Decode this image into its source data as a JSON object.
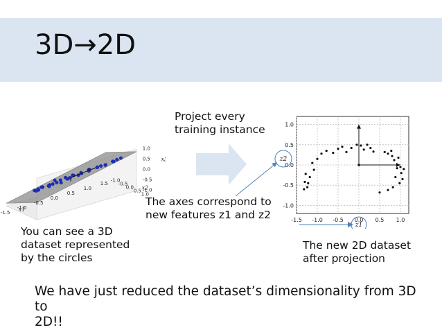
{
  "slide": {
    "title": "3D→2D",
    "project_text_line1": "Project every",
    "project_text_line2": "training instance",
    "axes_text_line1": "The axes correspond to",
    "axes_text_line2": "new features z1 and z2",
    "left_caption_line1": "You can see a 3D",
    "left_caption_line2": "dataset represented",
    "left_caption_line3": "by the circles",
    "right_caption_line1": "The new 2D dataset",
    "right_caption_line2": "after projection",
    "bottom_line1": "We have just reduced the dataset’s dimensionality from 3D to",
    "bottom_line2": "2D!!"
  },
  "colors": {
    "banner": "#dbe5f1",
    "arrow": "#dbe5f1",
    "callout": "#4f81bd",
    "points3d": "#1f2fbf"
  },
  "chart_data": [
    {
      "type": "scatter",
      "title": "",
      "xlabel": "z1",
      "ylabel": "z2",
      "xlim": [
        -1.5,
        1.2
      ],
      "ylim": [
        -1.2,
        1.2
      ],
      "xticks": [
        "-1.5",
        "-1.0",
        "-0.5",
        "0.0",
        "0.5",
        "1.0"
      ],
      "yticks": [
        "1.0",
        "0.5",
        "0.0",
        "-0.5",
        "-1.0"
      ],
      "grid": true,
      "points": [
        [
          -1.28,
          -0.22
        ],
        [
          -1.3,
          -0.42
        ],
        [
          -1.24,
          -0.55
        ],
        [
          -1.32,
          -0.6
        ],
        [
          -1.22,
          -0.45
        ],
        [
          -1.18,
          -0.3
        ],
        [
          -1.08,
          -0.12
        ],
        [
          -1.12,
          0.05
        ],
        [
          -1.0,
          0.15
        ],
        [
          -0.9,
          0.28
        ],
        [
          -0.78,
          0.35
        ],
        [
          -0.62,
          0.3
        ],
        [
          -0.5,
          0.4
        ],
        [
          -0.4,
          0.45
        ],
        [
          -0.3,
          0.32
        ],
        [
          -0.18,
          0.42
        ],
        [
          -0.05,
          0.5
        ],
        [
          0.05,
          0.48
        ],
        [
          0.12,
          0.38
        ],
        [
          0.2,
          0.5
        ],
        [
          0.28,
          0.42
        ],
        [
          0.35,
          0.33
        ],
        [
          0.62,
          0.32
        ],
        [
          0.7,
          0.28
        ],
        [
          0.78,
          0.35
        ],
        [
          0.8,
          0.22
        ],
        [
          0.85,
          0.12
        ],
        [
          0.95,
          0.18
        ],
        [
          1.0,
          -0.05
        ],
        [
          1.02,
          -0.2
        ],
        [
          1.05,
          -0.35
        ],
        [
          0.98,
          -0.45
        ],
        [
          1.08,
          -0.1
        ],
        [
          0.82,
          -0.55
        ],
        [
          0.7,
          -0.62
        ],
        [
          0.5,
          -0.68
        ],
        [
          0.88,
          -0.3
        ],
        [
          0.92,
          -0.08
        ]
      ],
      "vectors": [
        [
          0.0,
          1.0
        ],
        [
          1.0,
          0.0
        ]
      ]
    },
    {
      "type": "scatter",
      "title": "",
      "xlabel": "x1",
      "ylabel": "x2",
      "zlabel": "x3",
      "xticks": [
        "-1.5",
        "-1.0",
        "-0.5",
        "0.0",
        "0.5",
        "1.0",
        "1.5"
      ],
      "yticks": [
        "-1.0",
        "-0.5",
        "0.0",
        "0.5",
        "1.0"
      ],
      "zticks": [
        "1.0",
        "0.5",
        "0.0",
        "-0.5",
        "-1.0"
      ],
      "grid": true,
      "points": [
        [
          -1.2,
          0.2,
          0.0
        ],
        [
          -1.1,
          0.1,
          -0.1
        ],
        [
          -1.0,
          0.3,
          0.1
        ],
        [
          -0.9,
          0.0,
          -0.05
        ],
        [
          -0.8,
          0.25,
          0.05
        ],
        [
          -0.7,
          0.1,
          0.0
        ],
        [
          -0.6,
          0.35,
          0.15
        ],
        [
          -0.5,
          0.0,
          0.1
        ],
        [
          -0.4,
          0.2,
          0.0
        ],
        [
          -0.3,
          0.4,
          0.2
        ],
        [
          -0.2,
          0.05,
          0.1
        ],
        [
          -0.1,
          0.3,
          0.25
        ],
        [
          0.0,
          0.15,
          0.15
        ],
        [
          0.1,
          0.45,
          0.3
        ],
        [
          0.2,
          0.2,
          0.2
        ],
        [
          0.3,
          0.5,
          0.35
        ],
        [
          0.4,
          0.3,
          0.3
        ],
        [
          0.5,
          0.6,
          0.45
        ],
        [
          0.6,
          0.4,
          0.35
        ],
        [
          0.7,
          0.7,
          0.5
        ],
        [
          0.8,
          0.5,
          0.4
        ],
        [
          0.9,
          0.75,
          0.6
        ],
        [
          1.0,
          0.6,
          0.5
        ],
        [
          1.1,
          0.85,
          0.7
        ],
        [
          -1.15,
          0.35,
          0.05
        ],
        [
          -0.95,
          -0.1,
          -0.15
        ],
        [
          -0.65,
          0.2,
          0.05
        ],
        [
          -0.35,
          0.05,
          0.05
        ],
        [
          0.05,
          0.35,
          0.2
        ],
        [
          0.45,
          0.15,
          0.2
        ],
        [
          0.75,
          0.3,
          0.3
        ],
        [
          1.05,
          0.7,
          0.6
        ],
        [
          -0.85,
          0.4,
          0.1
        ],
        [
          -0.25,
          0.45,
          0.25
        ],
        [
          0.25,
          0.6,
          0.4
        ]
      ]
    }
  ]
}
